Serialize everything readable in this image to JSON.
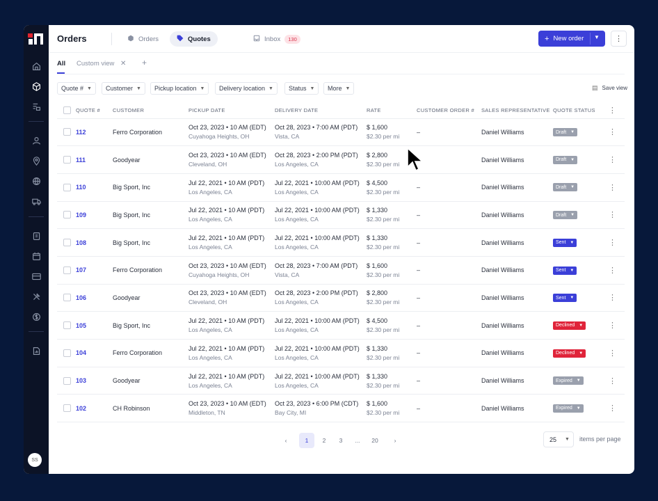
{
  "header": {
    "title": "Orders",
    "tabs": [
      {
        "label": "Orders",
        "icon": "box-icon"
      },
      {
        "label": "Quotes",
        "icon": "tag-icon"
      },
      {
        "label": "Inbox",
        "icon": "inbox-icon",
        "badge": "130"
      }
    ],
    "new_order_label": "New order"
  },
  "subtabs": {
    "items": [
      "All",
      "Custom view"
    ],
    "add_label": "+"
  },
  "filters": {
    "items": [
      "Quote #",
      "Customer",
      "Pickup location",
      "Delivery location",
      "Status",
      "More"
    ],
    "save_view_label": "Save view"
  },
  "table": {
    "columns": [
      "QUOTE #",
      "CUSTOMER",
      "PICKUP DATE",
      "DELIVERY DATE",
      "RATE",
      "CUSTOMER ORDER #",
      "SALES REPRESENTATIVE",
      "QUOTE STATUS"
    ],
    "rows": [
      {
        "quote": "112",
        "customer": "Ferro Corporation",
        "pickup_date": "Oct 23, 2023 • 10 AM (EDT)",
        "pickup_loc": "Cuyahoga Heights, OH",
        "delivery_date": "Oct 28, 2023 • 7:00 AM (PDT)",
        "delivery_loc": "Vista, CA",
        "rate": "$ 1,600",
        "rate_per": "$2.30 per mi",
        "order": "–",
        "rep": "Daniel Williams",
        "status": "Draft"
      },
      {
        "quote": "111",
        "customer": "Goodyear",
        "pickup_date": "Oct 23, 2023 • 10 AM (EDT)",
        "pickup_loc": "Cleveland, OH",
        "delivery_date": "Oct 28, 2023 • 2:00 PM (PDT)",
        "delivery_loc": "Los Angeles, CA",
        "rate": "$ 2,800",
        "rate_per": "$2.30 per mi",
        "order": "–",
        "rep": "Daniel Williams",
        "status": "Draft"
      },
      {
        "quote": "110",
        "customer": "Big Sport, Inc",
        "pickup_date": "Jul 22, 2021 • 10 AM (PDT)",
        "pickup_loc": "Los Angeles, CA",
        "delivery_date": "Jul 22, 2021 • 10:00 AM (PDT)",
        "delivery_loc": "Los Angeles, CA",
        "rate": "$ 4,500",
        "rate_per": "$2.30 per mi",
        "order": "–",
        "rep": "Daniel Williams",
        "status": "Draft"
      },
      {
        "quote": "109",
        "customer": "Big Sport, Inc",
        "pickup_date": "Jul 22, 2021 • 10 AM (PDT)",
        "pickup_loc": "Los Angeles, CA",
        "delivery_date": "Jul 22, 2021 • 10:00 AM (PDT)",
        "delivery_loc": "Los Angeles, CA",
        "rate": "$ 1,330",
        "rate_per": "$2.30 per mi",
        "order": "–",
        "rep": "Daniel Williams",
        "status": "Draft"
      },
      {
        "quote": "108",
        "customer": "Big Sport, Inc",
        "pickup_date": "Jul 22, 2021 • 10 AM (PDT)",
        "pickup_loc": "Los Angeles, CA",
        "delivery_date": "Jul 22, 2021 • 10:00 AM (PDT)",
        "delivery_loc": "Los Angeles, CA",
        "rate": "$ 1,330",
        "rate_per": "$2.30 per mi",
        "order": "–",
        "rep": "Daniel Williams",
        "status": "Sent"
      },
      {
        "quote": "107",
        "customer": "Ferro Corporation",
        "pickup_date": "Oct 23, 2023 • 10 AM (EDT)",
        "pickup_loc": "Cuyahoga Heights, OH",
        "delivery_date": "Oct 28, 2023 • 7:00 AM (PDT)",
        "delivery_loc": "Vista, CA",
        "rate": "$ 1,600",
        "rate_per": "$2.30 per mi",
        "order": "–",
        "rep": "Daniel Williams",
        "status": "Sent"
      },
      {
        "quote": "106",
        "customer": "Goodyear",
        "pickup_date": "Oct 23, 2023 • 10 AM (EDT)",
        "pickup_loc": "Cleveland, OH",
        "delivery_date": "Oct 28, 2023 • 2:00 PM (PDT)",
        "delivery_loc": "Los Angeles, CA",
        "rate": "$ 2,800",
        "rate_per": "$2.30 per mi",
        "order": "–",
        "rep": "Daniel Williams",
        "status": "Sent"
      },
      {
        "quote": "105",
        "customer": "Big Sport, Inc",
        "pickup_date": "Jul 22, 2021 • 10 AM (PDT)",
        "pickup_loc": "Los Angeles, CA",
        "delivery_date": "Jul 22, 2021 • 10:00 AM (PDT)",
        "delivery_loc": "Los Angeles, CA",
        "rate": "$ 4,500",
        "rate_per": "$2.30 per mi",
        "order": "–",
        "rep": "Daniel Williams",
        "status": "Declined"
      },
      {
        "quote": "104",
        "customer": "Ferro Corporation",
        "pickup_date": "Jul 22, 2021 • 10 AM (PDT)",
        "pickup_loc": "Los Angeles, CA",
        "delivery_date": "Jul 22, 2021 • 10:00 AM (PDT)",
        "delivery_loc": "Los Angeles, CA",
        "rate": "$ 1,330",
        "rate_per": "$2.30 per mi",
        "order": "–",
        "rep": "Daniel Williams",
        "status": "Declined"
      },
      {
        "quote": "103",
        "customer": "Goodyear",
        "pickup_date": "Jul 22, 2021 • 10 AM (PDT)",
        "pickup_loc": "Los Angeles, CA",
        "delivery_date": "Jul 22, 2021 • 10:00 AM (PDT)",
        "delivery_loc": "Los Angeles, CA",
        "rate": "$ 1,330",
        "rate_per": "$2.30 per mi",
        "order": "–",
        "rep": "Daniel Williams",
        "status": "Expired"
      },
      {
        "quote": "102",
        "customer": "CH Robinson",
        "pickup_date": "Oct 23, 2023 • 10 AM (EDT)",
        "pickup_loc": "Middleton, TN",
        "delivery_date": "Oct 23, 2023 • 6:00 PM (CDT)",
        "delivery_loc": "Bay City, MI",
        "rate": "$ 1,600",
        "rate_per": "$2.30 per mi",
        "order": "–",
        "rep": "Daniel Williams",
        "status": "Expired"
      }
    ]
  },
  "pagination": {
    "pages": [
      "1",
      "2",
      "3",
      "...",
      "20"
    ],
    "current": "1",
    "per_page": "25",
    "per_page_label": "items per page"
  },
  "user": {
    "initials": "SS"
  },
  "colors": {
    "accent": "#3b3fd8",
    "sidebar": "#0c1326",
    "declined": "#e0243a",
    "draft": "#9aa0ad"
  }
}
